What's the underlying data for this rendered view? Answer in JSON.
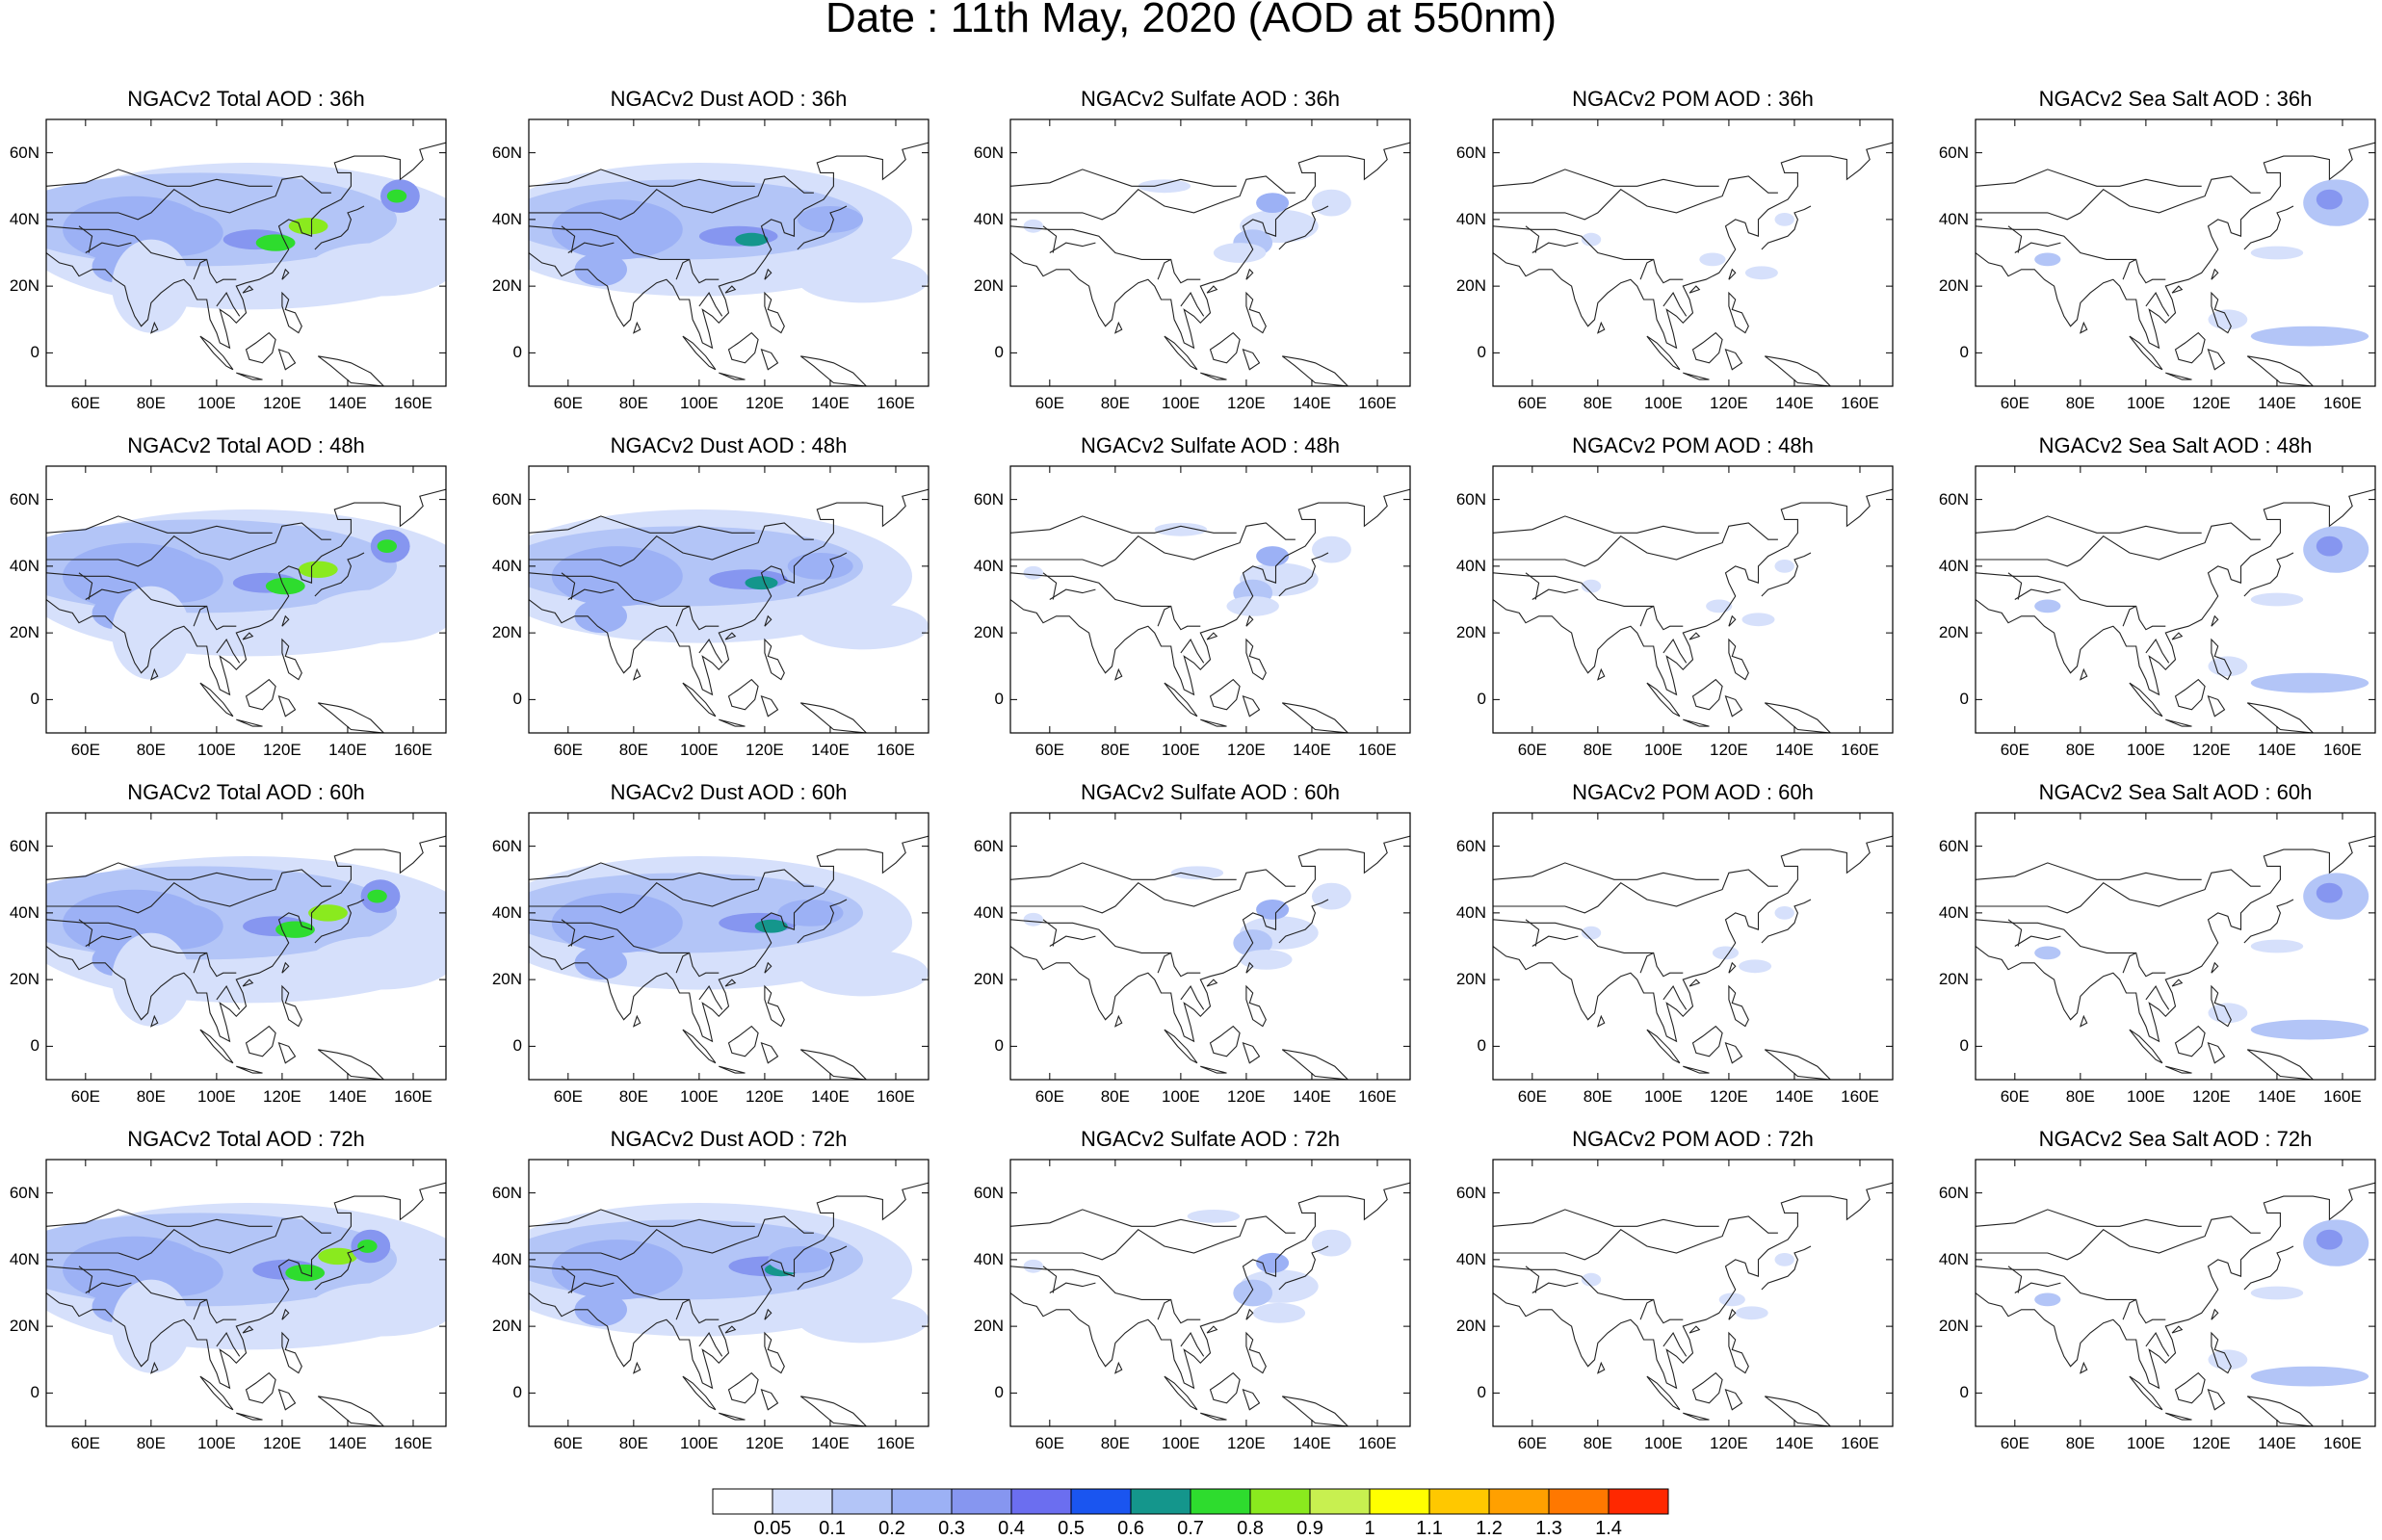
{
  "title": "Date : 11th May, 2020 (AOD at 550nm)",
  "panel_titles": [
    [
      "NGACv2 Total AOD : 36h",
      "NGACv2 Dust AOD : 36h",
      "NGACv2 Sulfate AOD : 36h",
      "NGACv2 POM AOD : 36h",
      "NGACv2 Sea Salt AOD : 36h"
    ],
    [
      "NGACv2 Total AOD : 48h",
      "NGACv2 Dust AOD : 48h",
      "NGACv2 Sulfate AOD : 48h",
      "NGACv2 POM AOD : 48h",
      "NGACv2 Sea Salt AOD : 48h"
    ],
    [
      "NGACv2 Total AOD : 60h",
      "NGACv2 Dust AOD : 60h",
      "NGACv2 Sulfate AOD : 60h",
      "NGACv2 POM AOD : 60h",
      "NGACv2 Sea Salt AOD : 60h"
    ],
    [
      "NGACv2 Total AOD : 72h",
      "NGACv2 Dust AOD : 72h",
      "NGACv2 Sulfate AOD : 72h",
      "NGACv2 POM AOD : 72h",
      "NGACv2 Sea Salt  AOD : 72h"
    ]
  ],
  "lon_ticks": [
    "60E",
    "80E",
    "100E",
    "120E",
    "140E",
    "160E"
  ],
  "lon_values": [
    60,
    80,
    100,
    120,
    140,
    160
  ],
  "lat_ticks": [
    "60N",
    "40N",
    "20N",
    "0"
  ],
  "lat_values": [
    60,
    40,
    20,
    0
  ],
  "map_extent": {
    "lon": [
      48,
      170
    ],
    "lat": [
      -10,
      70
    ]
  },
  "colorbar": {
    "labels": [
      "0.05",
      "0.1",
      "0.2",
      "0.3",
      "0.4",
      "0.5",
      "0.6",
      "0.7",
      "0.8",
      "0.9",
      "1",
      "1.1",
      "1.2",
      "1.3",
      "1.4"
    ],
    "colors": [
      "#ffffff",
      "#d6e0fb",
      "#b3c5f7",
      "#9cb1f5",
      "#8696f0",
      "#6b6ef0",
      "#1a55f0",
      "#14968c",
      "#2edc2e",
      "#8aea1e",
      "#c8f050",
      "#ffff00",
      "#ffc800",
      "#ffa000",
      "#ff7800",
      "#ff2800"
    ]
  }
}
